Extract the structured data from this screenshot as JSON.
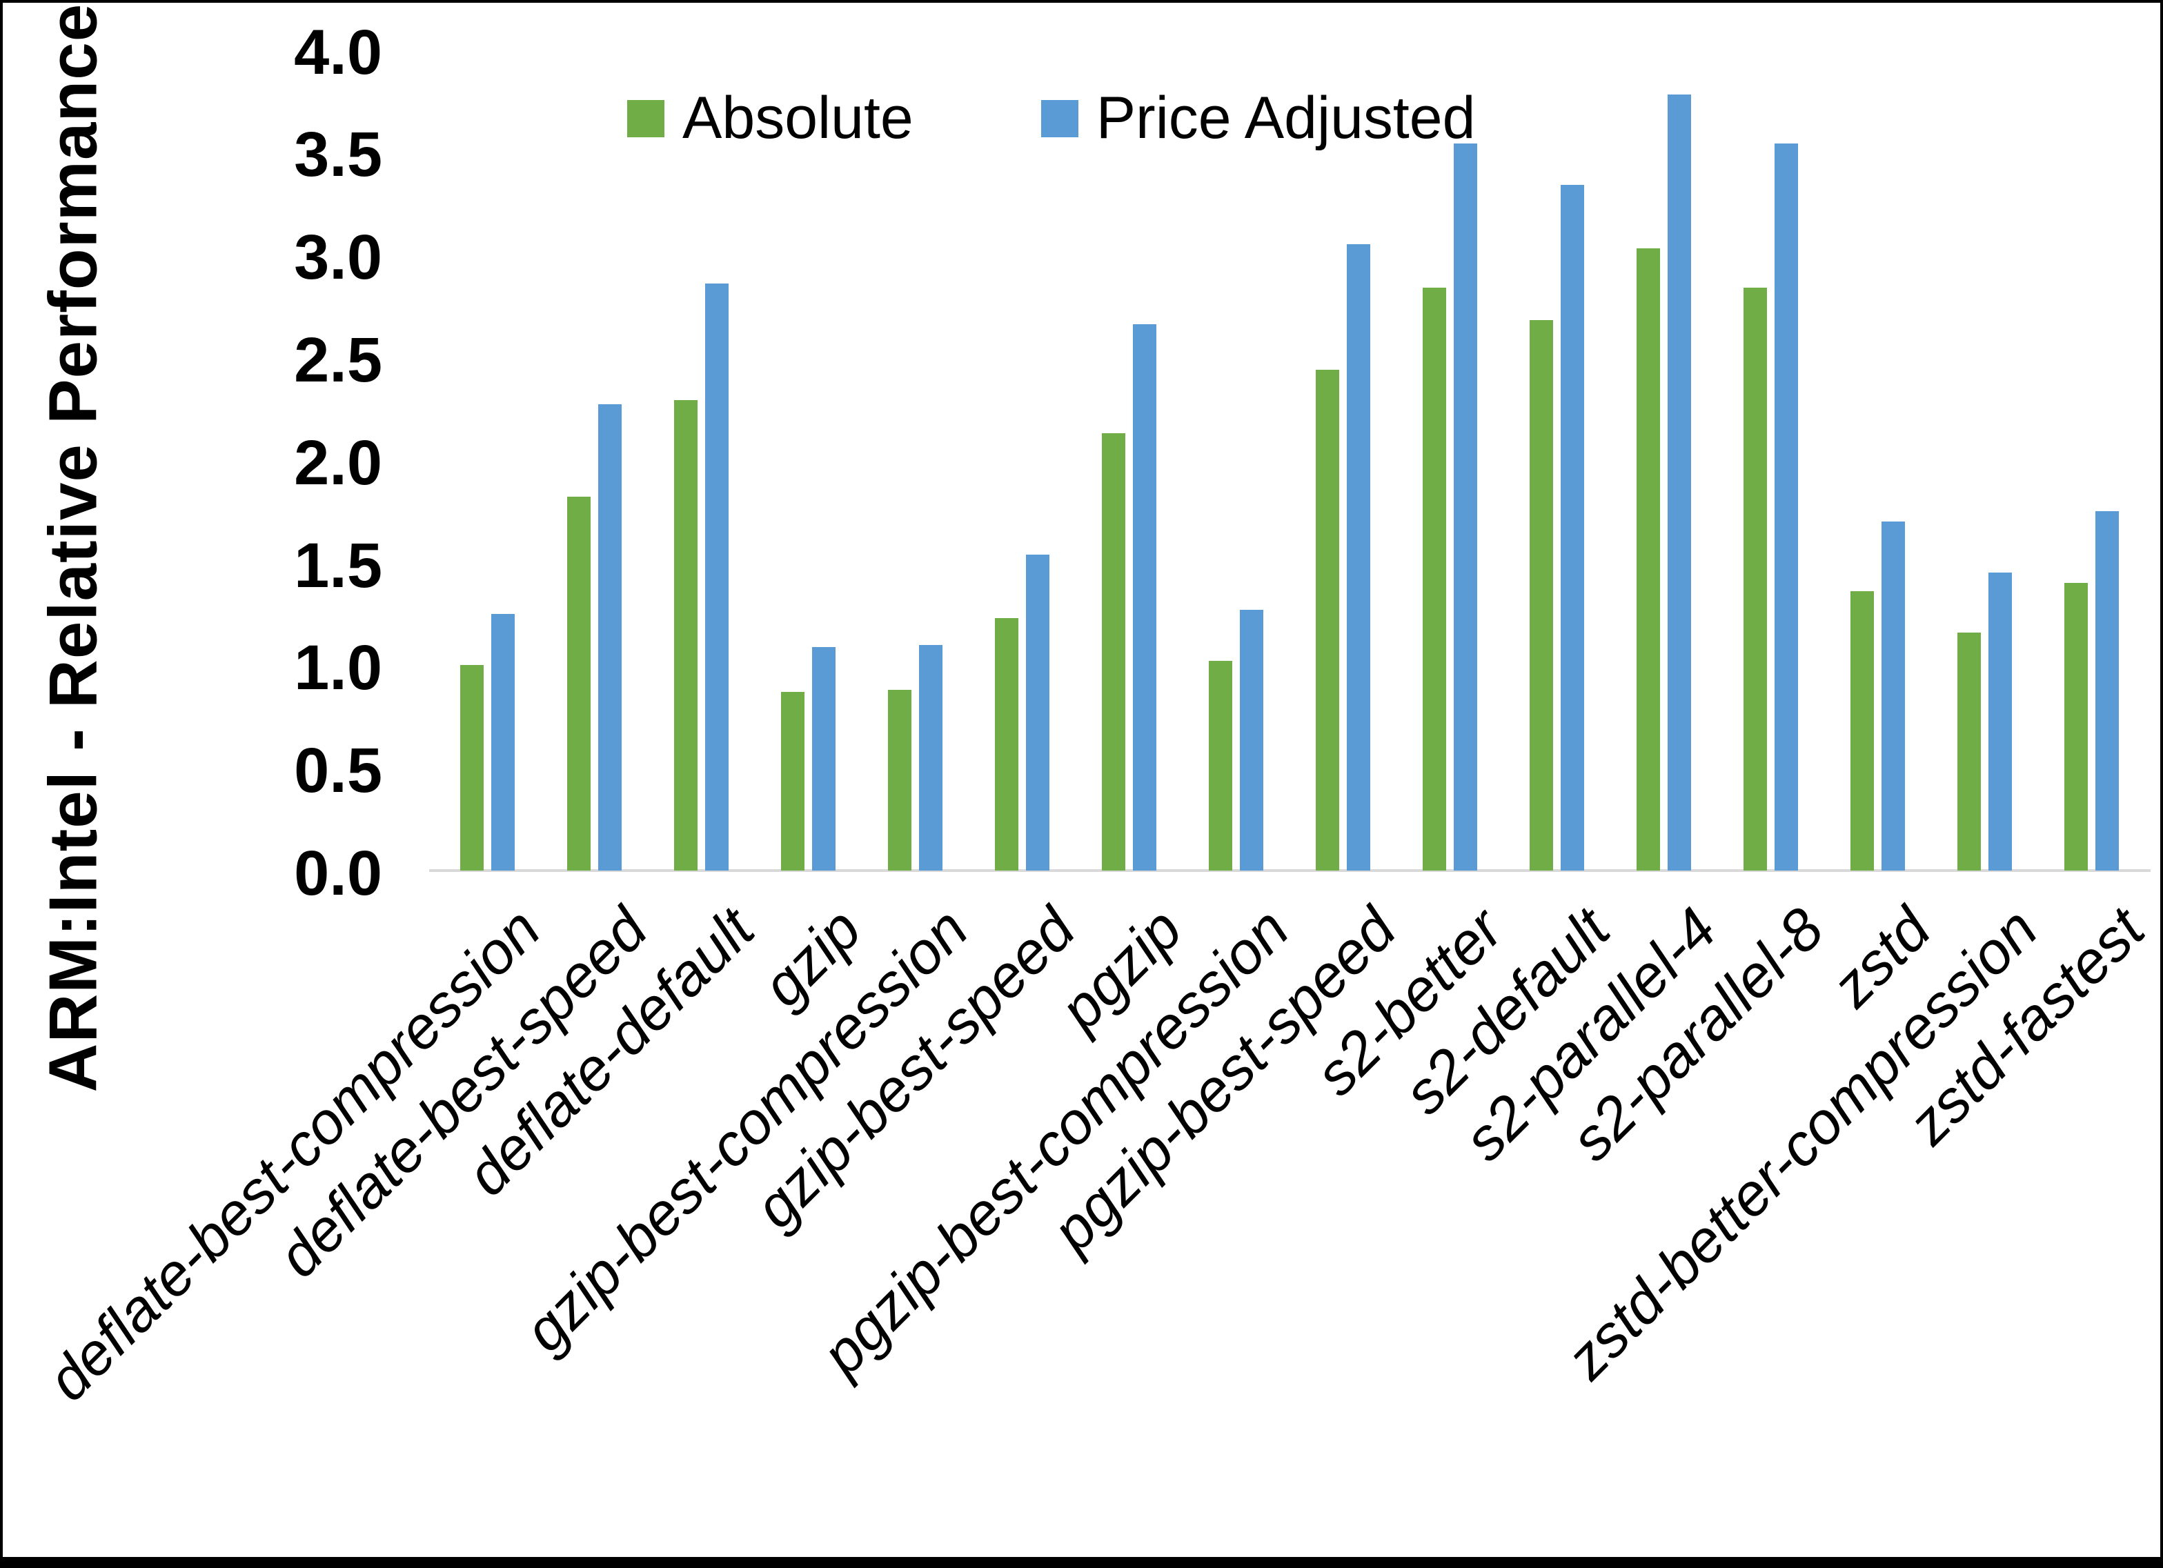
{
  "y_axis": {
    "title": "ARM:Intel - Relative Performance",
    "tick_labels": [
      "0.0",
      "0.5",
      "1.0",
      "1.5",
      "2.0",
      "2.5",
      "3.0",
      "3.5",
      "4.0"
    ]
  },
  "chart_data": {
    "type": "bar",
    "title": "",
    "xlabel": "",
    "ylabel": "ARM:Intel - Relative Performance",
    "ylim": [
      0,
      4
    ],
    "y_tick_step": 0.5,
    "grid": false,
    "legend_position": "top",
    "categories": [
      "deflate-best-compression",
      "deflate-best-speed",
      "deflate-default",
      "gzip",
      "gzip-best-compression",
      "gzip-best-speed",
      "pgzip",
      "pgzip-best-compression",
      "pgzip-best-speed",
      "s2-better",
      "s2-default",
      "s2-parallel-4",
      "s2-parallel-8",
      "zstd",
      "zstd-better-compression",
      "zstd-fastest"
    ],
    "series": [
      {
        "name": "Absolute",
        "color": "#70AD47",
        "values": [
          1.0,
          1.82,
          2.29,
          0.87,
          0.88,
          1.23,
          2.13,
          1.02,
          2.44,
          2.84,
          2.68,
          3.03,
          2.84,
          1.36,
          1.16,
          1.4
        ]
      },
      {
        "name": "Price Adjusted",
        "color": "#5B9BD5",
        "values": [
          1.25,
          2.27,
          2.86,
          1.09,
          1.1,
          1.54,
          2.66,
          1.27,
          3.05,
          3.54,
          3.34,
          3.78,
          3.54,
          1.7,
          1.45,
          1.75
        ]
      }
    ]
  },
  "colors": {
    "axis_line": "#D9D9D9",
    "background": "#FFFFFF",
    "frame_border": "#000000"
  }
}
